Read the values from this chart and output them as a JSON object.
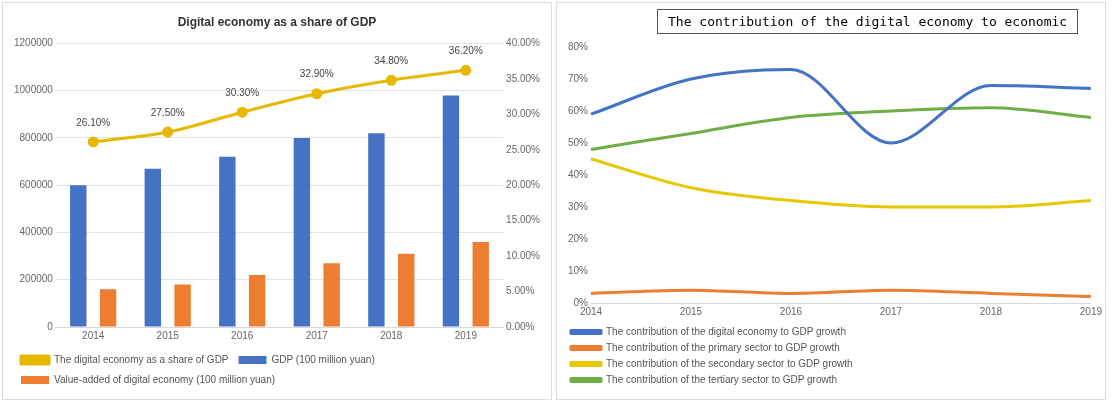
{
  "chart_data": [
    {
      "type": "bar",
      "title": "Digital economy as a share of GDP",
      "categories": [
        "2014",
        "2015",
        "2016",
        "2017",
        "2018",
        "2019"
      ],
      "series": [
        {
          "name": "GDP (100 million yuan)",
          "color": "#4472c4",
          "values": [
            600000,
            670000,
            720000,
            800000,
            820000,
            980000
          ]
        },
        {
          "name": "Value-added of digital economy (100 million yuan)",
          "color": "#ed7d31",
          "values": [
            160000,
            180000,
            220000,
            270000,
            310000,
            360000
          ]
        },
        {
          "name": "The digital economy as a share of GDP",
          "type": "line",
          "axis": "y2",
          "color": "#e6b800",
          "values": [
            26.1,
            27.5,
            30.3,
            32.9,
            34.8,
            36.2
          ],
          "value_labels": [
            "26.10%",
            "27.50%",
            "30.30%",
            "32.90%",
            "34.80%",
            "36.20%"
          ]
        }
      ],
      "ylim": [
        0,
        1200000
      ],
      "yticks": [
        0,
        200000,
        400000,
        600000,
        800000,
        1000000,
        1200000
      ],
      "y2lim": [
        0,
        40
      ],
      "y2ticks": [
        {
          "value": 0,
          "label": "0.00%"
        },
        {
          "value": 5,
          "label": "5.00%"
        },
        {
          "value": 10,
          "label": "10.00%"
        },
        {
          "value": 15,
          "label": "15.00%"
        },
        {
          "value": 20,
          "label": "20.00%"
        },
        {
          "value": 25,
          "label": "25.00%"
        },
        {
          "value": 30,
          "label": "30.00%"
        },
        {
          "value": 35,
          "label": "35.00%"
        },
        {
          "value": 40,
          "label": "40.00%"
        }
      ],
      "grid": "y",
      "legend": "bottom",
      "marker": "circle"
    },
    {
      "type": "line",
      "title": "The contribution of the digital economy to economic",
      "categories": [
        "2014",
        "2015",
        "2016",
        "2017",
        "2018",
        "2019"
      ],
      "series": [
        {
          "name": "The contribution of the digital economy to GDP growth",
          "color": "#4472c4",
          "values": [
            59,
            70,
            73,
            50,
            68,
            67
          ]
        },
        {
          "name": "The contribution of the primary sector to GDP growth",
          "color": "#ed7d31",
          "values": [
            3,
            4,
            3,
            4,
            3,
            2
          ]
        },
        {
          "name": "The contribution of the secondary sector to GDP growth",
          "color": "#e6c800",
          "values": [
            45,
            36,
            32,
            30,
            30,
            32
          ]
        },
        {
          "name": "The contribution of the tertiary sector to GDP growth",
          "color": "#70ad47",
          "values": [
            48,
            53,
            58,
            60,
            61,
            58
          ]
        }
      ],
      "ylim": [
        0,
        80
      ],
      "yticks": [
        {
          "value": 0,
          "label": "0%"
        },
        {
          "value": 10,
          "label": "10%"
        },
        {
          "value": 20,
          "label": "20%"
        },
        {
          "value": 30,
          "label": "30%"
        },
        {
          "value": 40,
          "label": "40%"
        },
        {
          "value": 50,
          "label": "50%"
        },
        {
          "value": 60,
          "label": "60%"
        },
        {
          "value": 70,
          "label": "70%"
        },
        {
          "value": 80,
          "label": "80%"
        }
      ],
      "grid": false,
      "legend": "bottom",
      "marker": "none"
    }
  ]
}
